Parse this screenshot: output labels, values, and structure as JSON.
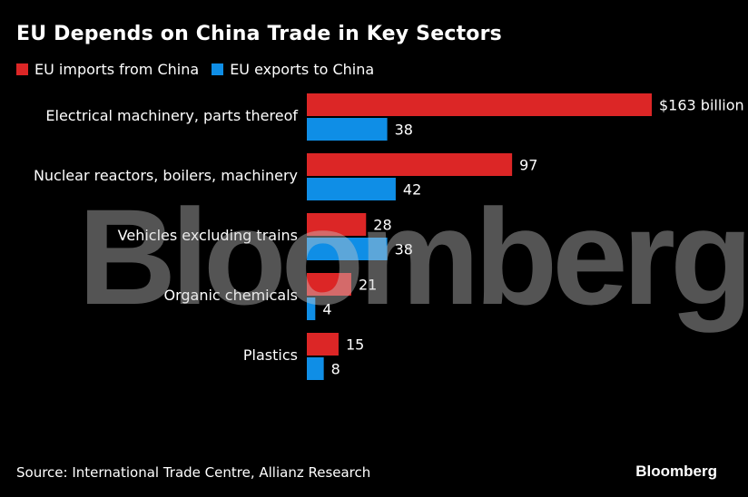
{
  "chart_data": {
    "type": "bar",
    "orientation": "horizontal",
    "title": "EU Depends on China Trade in Key Sectors",
    "categories": [
      "Electrical machinery, parts thereof",
      "Nuclear reactors, boilers, machinery",
      "Vehicles excluding trains",
      "Organic chemicals",
      "Plastics"
    ],
    "series": [
      {
        "name": "EU imports from China",
        "color": "#dc2626",
        "values": [
          163,
          97,
          28,
          21,
          15
        ],
        "labels": [
          "$163 billion",
          "97",
          "28",
          "21",
          "15"
        ]
      },
      {
        "name": "EU exports to China",
        "color": "#0f8ee6",
        "values": [
          38,
          42,
          38,
          4,
          8
        ],
        "labels": [
          "38",
          "42",
          "38",
          "4",
          "8"
        ]
      }
    ],
    "xlim": [
      0,
      163
    ],
    "xlabel": "",
    "ylabel": "",
    "grid": false,
    "legend": "top-left"
  },
  "watermark": "Bloomberg",
  "footer": {
    "source": "Source: International Trade Centre, Allianz Research",
    "brand": "Bloomberg"
  }
}
